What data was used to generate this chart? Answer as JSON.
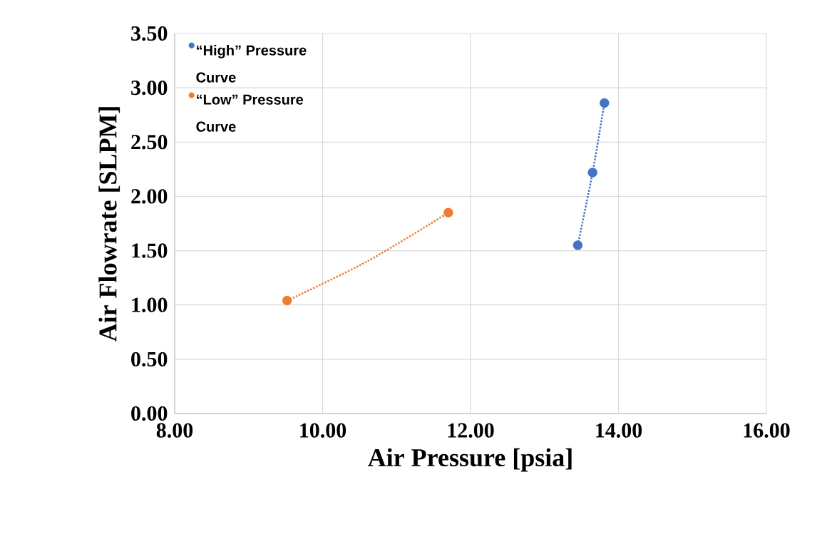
{
  "chart_data": {
    "type": "scatter",
    "xlabel": "Air Pressure [psia]",
    "ylabel": "Air Flowrate [SLPM]",
    "xlim": [
      8,
      16
    ],
    "ylim": [
      0,
      3.5
    ],
    "xticks": [
      {
        "value": 8,
        "label": "8.00"
      },
      {
        "value": 10,
        "label": "10.00"
      },
      {
        "value": 12,
        "label": "12.00"
      },
      {
        "value": 14,
        "label": "14.00"
      },
      {
        "value": 16,
        "label": "16.00"
      }
    ],
    "yticks": [
      {
        "value": 0,
        "label": "0.00"
      },
      {
        "value": 0.5,
        "label": "0.50"
      },
      {
        "value": 1,
        "label": "1.00"
      },
      {
        "value": 1.5,
        "label": "1.50"
      },
      {
        "value": 2,
        "label": "2.00"
      },
      {
        "value": 2.5,
        "label": "2.50"
      },
      {
        "value": 3,
        "label": "3.00"
      },
      {
        "value": 3.5,
        "label": "3.50"
      }
    ],
    "grid": true,
    "legend": "top left",
    "series": [
      {
        "name": "“High” Pressure Curve",
        "type": "scatter",
        "marker": "circle",
        "color": "#4472c4",
        "x": [
          13.45,
          13.65,
          13.81
        ],
        "values": [
          1.55,
          2.22,
          2.86
        ]
      },
      {
        "name": "“Low” Pressure Curve",
        "type": "scatter",
        "marker": "circle",
        "color": "#ed7d31",
        "x": [
          9.52,
          11.7
        ],
        "values": [
          1.04,
          1.85
        ]
      },
      {
        "type": "line",
        "line_style": "dotted",
        "color": "#4472c4",
        "x": [
          13.45,
          13.65,
          13.81
        ],
        "values": [
          1.55,
          2.22,
          2.86
        ]
      },
      {
        "type": "line",
        "line_style": "dotted",
        "color": "#ed7d31",
        "x": [
          9.52,
          10.6,
          11.7
        ],
        "values": [
          1.04,
          1.4,
          1.85
        ]
      }
    ]
  }
}
